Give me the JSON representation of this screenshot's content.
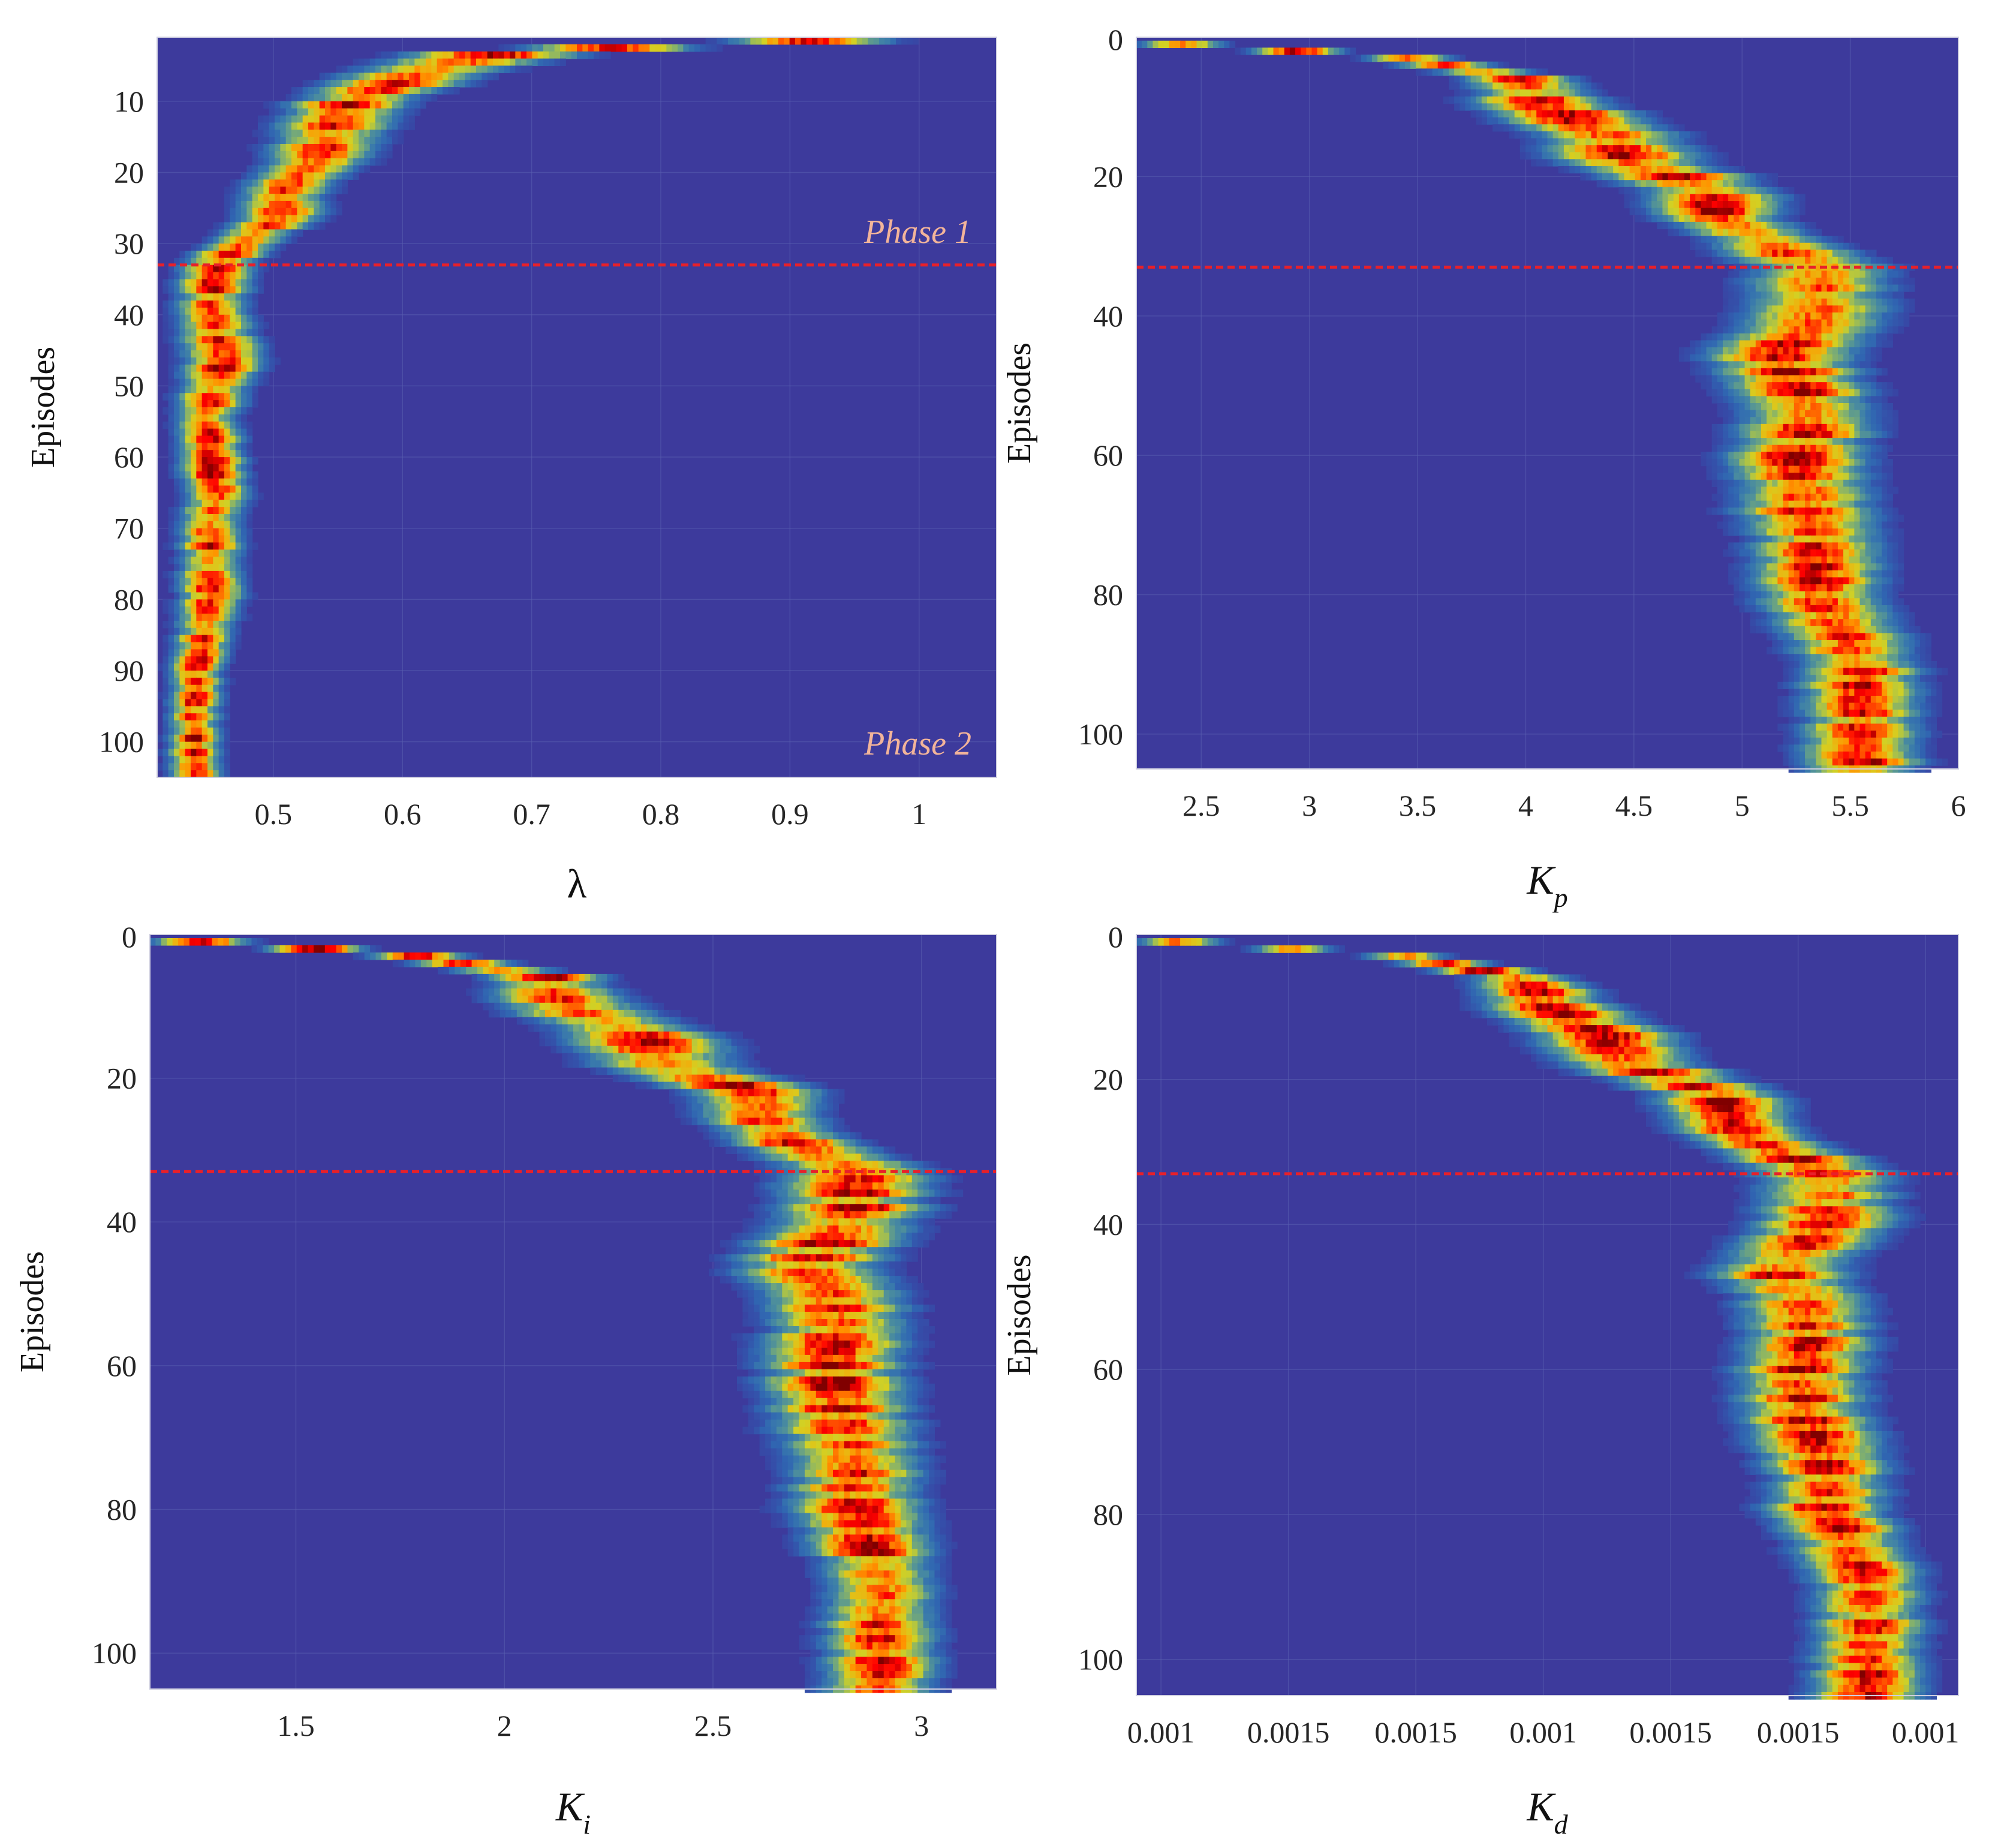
{
  "chart_data": [
    {
      "type": "heatmap",
      "panel": "top-left",
      "xlabel": "λ",
      "ylabel": "Episodes",
      "xlim": [
        0.41,
        1.06
      ],
      "ylim": [
        1,
        105
      ],
      "xticks": [
        0.5,
        0.6,
        0.7,
        0.8,
        0.9,
        1.0
      ],
      "xtick_labels": [
        "0.5",
        "0.6",
        "0.7",
        "0.8",
        "0.9",
        "1"
      ],
      "yticks": [
        10,
        20,
        30,
        40,
        50,
        60,
        70,
        80,
        90,
        100
      ],
      "ytick_labels": [
        "10",
        "20",
        "30",
        "40",
        "50",
        "60",
        "70",
        "80",
        "90",
        "100"
      ],
      "phase_boundary_episode": 33,
      "annotations": [
        "Phase 1",
        "Phase 2"
      ],
      "ridge": {
        "episodes": [
          1,
          3,
          6,
          10,
          14,
          18,
          22,
          26,
          29,
          33,
          40,
          46,
          50,
          55,
          60,
          65,
          70,
          75,
          80,
          85,
          90,
          95,
          100,
          105
        ],
        "center": [
          1.0,
          0.68,
          0.61,
          0.56,
          0.545,
          0.535,
          0.51,
          0.505,
          0.485,
          0.455,
          0.452,
          0.462,
          0.455,
          0.448,
          0.452,
          0.456,
          0.45,
          0.452,
          0.452,
          0.446,
          0.44,
          0.44,
          0.439,
          0.44
        ],
        "width": [
          0.05,
          0.06,
          0.05,
          0.04,
          0.04,
          0.035,
          0.03,
          0.03,
          0.025,
          0.025,
          0.025,
          0.028,
          0.025,
          0.022,
          0.022,
          0.022,
          0.022,
          0.022,
          0.022,
          0.02,
          0.018,
          0.018,
          0.018,
          0.018
        ]
      }
    },
    {
      "type": "heatmap",
      "panel": "top-right",
      "xlabel": "K",
      "xlabel_sub": "p",
      "ylabel": "Episodes",
      "xlim": [
        2.2,
        6.0
      ],
      "ylim": [
        0,
        105
      ],
      "xticks": [
        2.5,
        3,
        3.5,
        4,
        4.5,
        5,
        5.5,
        6
      ],
      "xtick_labels": [
        "2.5",
        "3",
        "3.5",
        "4",
        "4.5",
        "5",
        "5.5",
        "6"
      ],
      "yticks": [
        0,
        20,
        40,
        60,
        80,
        100
      ],
      "ytick_labels": [
        "0",
        "20",
        "40",
        "60",
        "80",
        "100"
      ],
      "phase_boundary_episode": 33,
      "ridge": {
        "episodes": [
          1,
          3,
          6,
          10,
          14,
          18,
          22,
          26,
          29,
          33,
          40,
          46,
          50,
          55,
          60,
          65,
          70,
          75,
          80,
          85,
          90,
          95,
          100,
          105
        ],
        "center": [
          2.42,
          3.45,
          3.98,
          4.1,
          4.38,
          4.5,
          4.85,
          4.9,
          5.1,
          5.35,
          5.35,
          5.15,
          5.25,
          5.3,
          5.25,
          5.28,
          5.32,
          5.35,
          5.35,
          5.45,
          5.55,
          5.55,
          5.55,
          5.55
        ],
        "width": [
          0.18,
          0.18,
          0.22,
          0.28,
          0.3,
          0.3,
          0.28,
          0.25,
          0.25,
          0.3,
          0.3,
          0.3,
          0.28,
          0.28,
          0.28,
          0.28,
          0.28,
          0.26,
          0.26,
          0.26,
          0.24,
          0.24,
          0.24,
          0.24
        ]
      }
    },
    {
      "type": "heatmap",
      "panel": "bottom-left",
      "xlabel": "K",
      "xlabel_sub": "i",
      "ylabel": "Episodes",
      "xlim": [
        1.15,
        3.18
      ],
      "ylim": [
        0,
        105
      ],
      "xticks": [
        1.5,
        2,
        2.5,
        3
      ],
      "xtick_labels": [
        "1.5",
        "2",
        "2.5",
        "3"
      ],
      "yticks": [
        0,
        20,
        40,
        60,
        80,
        100
      ],
      "ytick_labels": [
        "0",
        "20",
        "40",
        "60",
        "80",
        "100"
      ],
      "phase_boundary_episode": 33,
      "ridge": {
        "episodes": [
          1,
          3,
          6,
          10,
          14,
          18,
          22,
          26,
          29,
          33,
          40,
          46,
          50,
          55,
          60,
          65,
          70,
          75,
          80,
          85,
          90,
          95,
          100,
          105
        ],
        "center": [
          1.28,
          1.8,
          2.1,
          2.15,
          2.32,
          2.38,
          2.6,
          2.62,
          2.7,
          2.85,
          2.82,
          2.72,
          2.78,
          2.8,
          2.78,
          2.8,
          2.82,
          2.84,
          2.84,
          2.88,
          2.9,
          2.9,
          2.9,
          2.9
        ],
        "width": [
          0.1,
          0.1,
          0.12,
          0.15,
          0.16,
          0.16,
          0.14,
          0.13,
          0.13,
          0.16,
          0.16,
          0.16,
          0.15,
          0.15,
          0.15,
          0.15,
          0.15,
          0.14,
          0.14,
          0.13,
          0.12,
          0.12,
          0.12,
          0.12
        ]
      }
    },
    {
      "type": "heatmap",
      "panel": "bottom-right",
      "xlabel": "K",
      "xlabel_sub": "d",
      "ylabel": "Episodes",
      "xlim": [
        0.0,
        1.0
      ],
      "ylim": [
        0,
        105
      ],
      "xticks": [
        0.03,
        0.185,
        0.34,
        0.495,
        0.65,
        0.805,
        0.96
      ],
      "xtick_labels": [
        "0.001",
        "0.0015",
        "0.0015",
        "0.001",
        "0.0015",
        "0.0015",
        "0.001"
      ],
      "yticks": [
        0,
        20,
        40,
        60,
        80,
        100
      ],
      "ytick_labels": [
        "0",
        "20",
        "40",
        "60",
        "80",
        "100"
      ],
      "phase_boundary_episode": 33,
      "ridge": {
        "episodes": [
          1,
          3,
          6,
          10,
          14,
          18,
          22,
          26,
          29,
          33,
          40,
          46,
          50,
          55,
          60,
          65,
          70,
          75,
          80,
          85,
          90,
          95,
          100,
          105
        ],
        "center": [
          0.055,
          0.33,
          0.47,
          0.5,
          0.57,
          0.6,
          0.71,
          0.72,
          0.76,
          0.84,
          0.84,
          0.78,
          0.81,
          0.82,
          0.81,
          0.81,
          0.83,
          0.84,
          0.84,
          0.87,
          0.89,
          0.89,
          0.89,
          0.89
        ],
        "width": [
          0.045,
          0.045,
          0.055,
          0.07,
          0.075,
          0.075,
          0.07,
          0.065,
          0.065,
          0.075,
          0.075,
          0.075,
          0.07,
          0.07,
          0.07,
          0.07,
          0.07,
          0.065,
          0.065,
          0.063,
          0.06,
          0.06,
          0.06,
          0.06
        ]
      }
    }
  ]
}
